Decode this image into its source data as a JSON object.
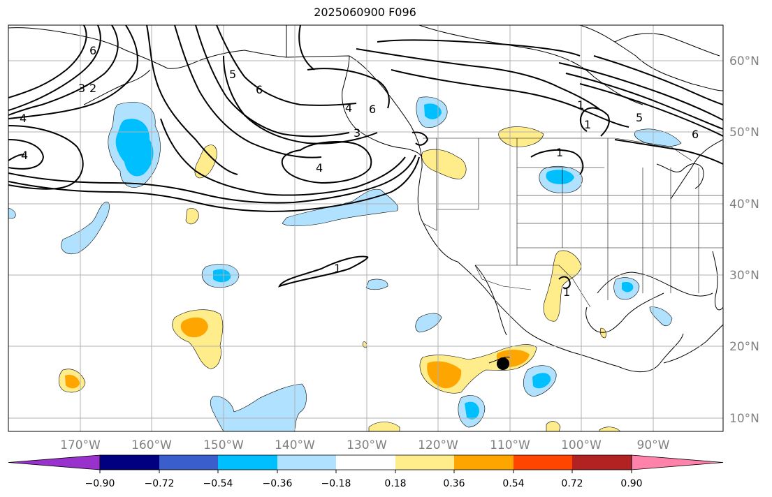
{
  "title": "2025060900 F096",
  "lon_labels": [
    "170°W",
    "160°W",
    "150°W",
    "140°W",
    "130°W",
    "120°W",
    "110°W",
    "100°W",
    "90°W"
  ],
  "lat_labels": [
    "60°N",
    "50°N",
    "40°N",
    "30°N",
    "20°N",
    "10°N"
  ],
  "colorbar": {
    "ticks": [
      "−0.90",
      "−0.72",
      "−0.54",
      "−0.36",
      "−0.18",
      "0.18",
      "0.36",
      "0.54",
      "0.72",
      "0.90"
    ],
    "colors": [
      "#9932cc",
      "#000080",
      "#3a5fcd",
      "#00bfff",
      "#b0e2ff",
      "#ffffff",
      "#ffec8b",
      "#ffa500",
      "#ff4500",
      "#b22222",
      "#ff82ab"
    ]
  },
  "contour_labels": [
    "6",
    "3",
    "2",
    "4",
    "4",
    "5",
    "6",
    "6",
    "4",
    "3",
    "4",
    "1",
    "1",
    "1",
    "5",
    "6",
    "1",
    "1"
  ],
  "colors": {
    "pos_light": "#ffec8b",
    "pos_mid": "#ffa500",
    "neg_light": "#b0e2ff",
    "neg_mid": "#00bfff",
    "grid": "#b0b0b0"
  }
}
